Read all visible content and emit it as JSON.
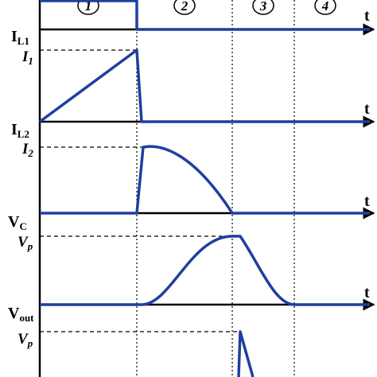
{
  "phases": [
    "1",
    "2",
    "3",
    "4"
  ],
  "gate_panel": {
    "axis_label": "t"
  },
  "panels": [
    {
      "name": "I",
      "sub": "L1",
      "level": "I",
      "level_sub": "1",
      "axis_label": "t"
    },
    {
      "name": "I",
      "sub": "L2",
      "level": "I",
      "level_sub": "2",
      "axis_label": "t"
    },
    {
      "name": "V",
      "sub": "C",
      "level": "V",
      "level_sub": "p",
      "axis_label": "t"
    },
    {
      "name": "V",
      "sub": "out",
      "level": "V",
      "level_sub": "p"
    }
  ]
}
